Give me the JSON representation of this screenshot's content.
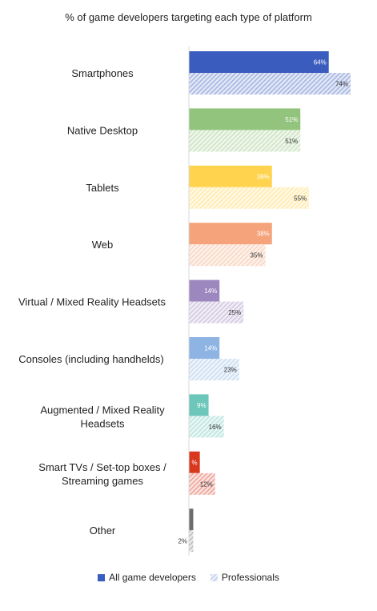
{
  "chart_data": {
    "type": "bar",
    "orientation": "horizontal",
    "title": "% of game developers targeting each type of platform",
    "categories": [
      "Smartphones",
      "Native Desktop",
      "Tablets",
      "Web",
      "Virtual / Mixed Reality Headsets",
      "Consoles (including handhelds)",
      "Augmented / Mixed Reality Headsets",
      "Smart TVs / Set-top boxes / Streaming games",
      "Other"
    ],
    "series": [
      {
        "name": "All game developers",
        "values": [
          64,
          51,
          38,
          38,
          14,
          14,
          9,
          5,
          2
        ],
        "labels": [
          "64%",
          "51%",
          "38%",
          "38%",
          "14%",
          "14%",
          "9%",
          "%",
          ""
        ]
      },
      {
        "name": "Professionals",
        "values": [
          74,
          51,
          55,
          35,
          25,
          23,
          16,
          12,
          2
        ],
        "labels": [
          "74%",
          "51%",
          "55%",
          "35%",
          "25%",
          "23%",
          "16%",
          "12%",
          "2%"
        ]
      }
    ],
    "colors": [
      "#3a5cbf",
      "#93c47d",
      "#ffd34d",
      "#f4a37a",
      "#9d87bf",
      "#8eb4e3",
      "#6cc6ba",
      "#d9381e",
      "#6d6d6d"
    ],
    "xlim": [
      0,
      100
    ],
    "grid": false,
    "legend_position": "bottom"
  },
  "legend": {
    "all_label": "All game developers",
    "pro_label": "Professionals"
  }
}
